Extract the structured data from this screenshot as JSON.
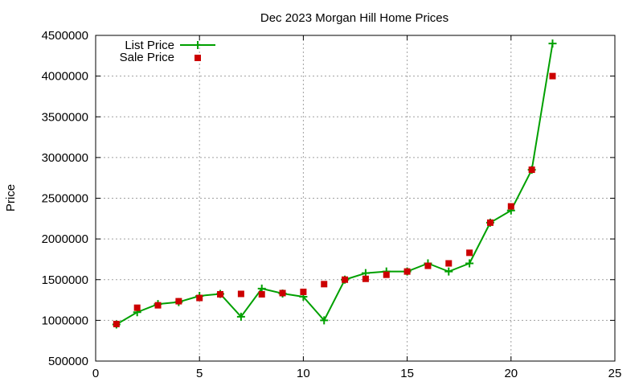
{
  "chart_data": {
    "type": "line",
    "title": "Dec 2023 Morgan Hill Home Prices",
    "xlabel": "",
    "ylabel": "Price",
    "xlim": [
      0,
      25
    ],
    "ylim": [
      500000,
      4500000
    ],
    "xticks": [
      0,
      5,
      10,
      15,
      20,
      25
    ],
    "yticks": [
      500000,
      1000000,
      1500000,
      2000000,
      2500000,
      3000000,
      3500000,
      4000000,
      4500000
    ],
    "grid": true,
    "legend_position": "top-left",
    "series": [
      {
        "name": "List Price",
        "style": "line-with-plus-markers",
        "color": "#00a000",
        "x": [
          1,
          2,
          3,
          4,
          5,
          6,
          7,
          8,
          9,
          10,
          11,
          12,
          13,
          14,
          15,
          16,
          17,
          18,
          19,
          20,
          21,
          22
        ],
        "y": [
          950000,
          1100000,
          1200000,
          1225000,
          1300000,
          1325000,
          1045000,
          1390000,
          1330000,
          1290000,
          1000000,
          1500000,
          1580000,
          1600000,
          1600000,
          1700000,
          1600000,
          1700000,
          2200000,
          2350000,
          2850000,
          4400000
        ]
      },
      {
        "name": "Sale Price",
        "style": "square-markers",
        "color": "#cc0000",
        "x": [
          1,
          2,
          3,
          4,
          5,
          6,
          7,
          8,
          9,
          10,
          11,
          12,
          13,
          14,
          15,
          16,
          17,
          18,
          19,
          20,
          21,
          22
        ],
        "y": [
          955000,
          1155000,
          1185000,
          1235000,
          1275000,
          1320000,
          1325000,
          1320000,
          1335000,
          1350000,
          1445000,
          1500000,
          1510000,
          1560000,
          1600000,
          1670000,
          1700000,
          1830000,
          2200000,
          2400000,
          2850000,
          4000000
        ]
      }
    ]
  }
}
